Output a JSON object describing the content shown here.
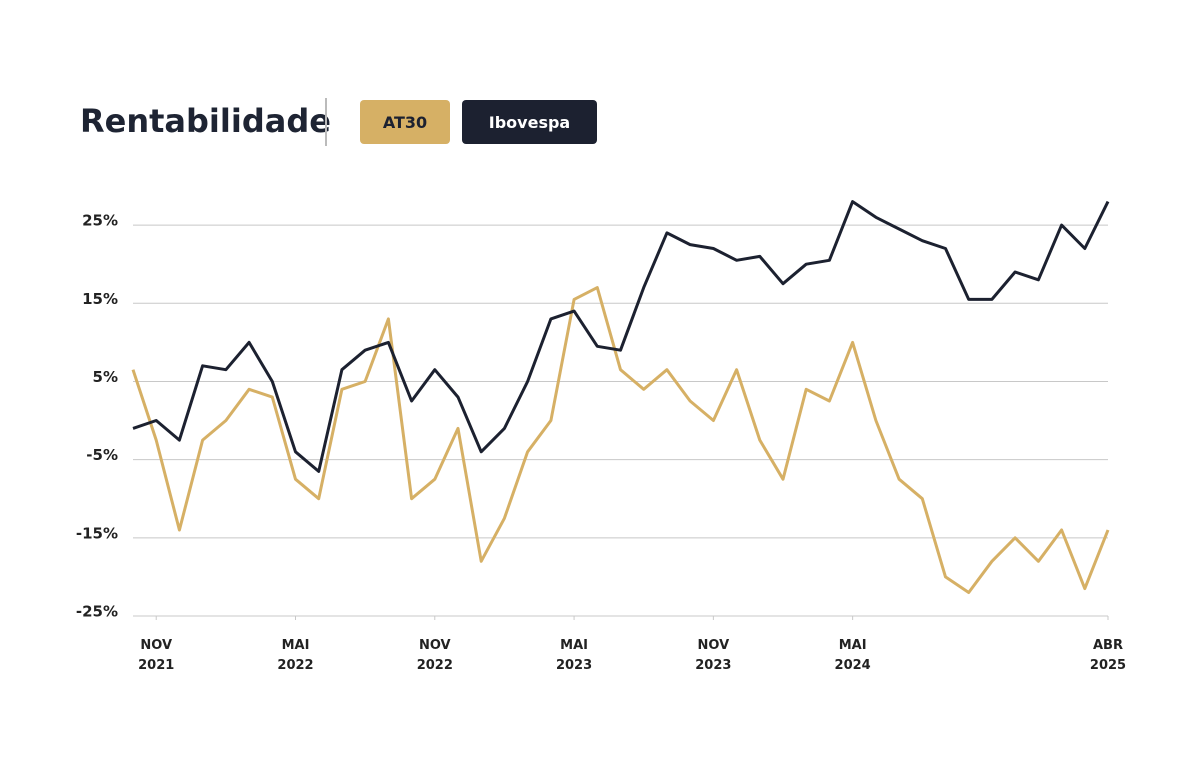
{
  "chart_data": {
    "type": "line",
    "title": "Rentabilidade",
    "x": [
      "2021-10",
      "2021-11",
      "2021-12",
      "2022-01",
      "2022-02",
      "2022-03",
      "2022-04",
      "2022-05",
      "2022-06",
      "2022-07",
      "2022-08",
      "2022-09",
      "2022-10",
      "2022-11",
      "2022-12",
      "2023-01",
      "2023-02",
      "2023-03",
      "2023-04",
      "2023-05",
      "2023-06",
      "2023-07",
      "2023-08",
      "2023-09",
      "2023-10",
      "2023-11",
      "2023-12",
      "2024-01",
      "2024-02",
      "2024-03",
      "2024-04",
      "2024-05",
      "2024-06",
      "2024-07",
      "2024-08",
      "2024-09",
      "2024-10",
      "2024-11",
      "2024-12",
      "2025-01",
      "2025-02",
      "2025-03",
      "2025-04"
    ],
    "series": [
      {
        "name": "AT30",
        "color": "#d6b065",
        "values": [
          6.5,
          -2.5,
          -14,
          -2.5,
          0,
          4,
          3,
          -7.5,
          -10,
          4,
          5,
          13,
          -10,
          -7.5,
          -1,
          -18,
          -12.5,
          -4,
          0,
          15.5,
          17,
          6.5,
          4,
          6.5,
          2.5,
          0,
          6.5,
          -2.5,
          -7.5,
          4,
          2.5,
          10,
          0,
          -7.5,
          -10,
          -20,
          -22,
          -18,
          -15,
          -18,
          -14,
          -21.5,
          -14
        ]
      },
      {
        "name": "Ibovespa",
        "color": "#1c2130",
        "values": [
          -1,
          0,
          -2.5,
          7,
          6.5,
          10,
          5,
          -4,
          -6.5,
          6.5,
          9,
          10,
          2.5,
          6.5,
          3,
          -4,
          -1,
          5,
          13,
          14,
          9.5,
          9,
          17,
          24,
          22.5,
          22,
          20.5,
          21,
          17.5,
          20,
          20.5,
          28,
          26,
          24.5,
          23,
          22,
          15.5,
          15.5,
          19,
          18,
          25,
          22,
          28
        ]
      }
    ],
    "ylim": [
      -25,
      30
    ],
    "yticks": [
      {
        "value": 25,
        "label": "25%"
      },
      {
        "value": 15,
        "label": "15%"
      },
      {
        "value": 5,
        "label": "5%"
      },
      {
        "value": -5,
        "label": "-5%"
      },
      {
        "value": -15,
        "label": "-15%"
      },
      {
        "value": -25,
        "label": "-25%"
      }
    ],
    "xticks": [
      {
        "value": "2021-11",
        "label": "NOV 2021"
      },
      {
        "value": "2022-05",
        "label": "MAI 2022"
      },
      {
        "value": "2022-11",
        "label": "NOV 2022"
      },
      {
        "value": "2023-05",
        "label": "MAI 2023"
      },
      {
        "value": "2023-11",
        "label": "NOV 2023"
      },
      {
        "value": "2024-05",
        "label": "MAI 2024"
      },
      {
        "value": "2025-04",
        "label": "ABR 2025"
      }
    ],
    "grid": true
  }
}
